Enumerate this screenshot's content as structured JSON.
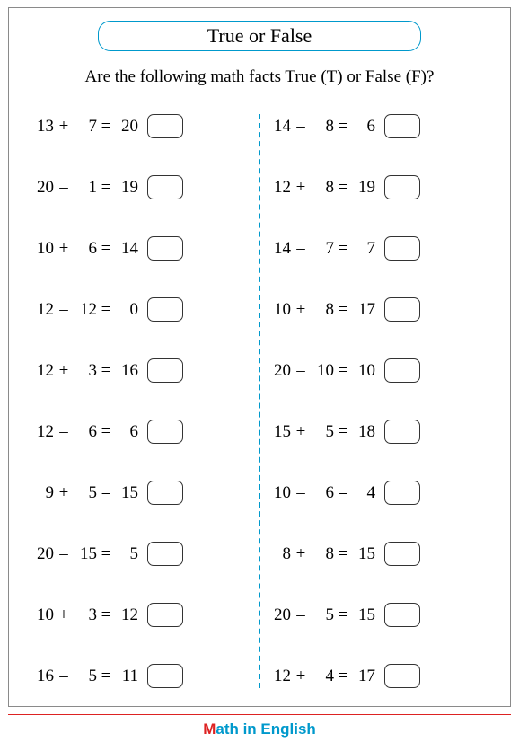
{
  "title": "True or False",
  "instructions": "Are the following math facts True (T) or False (F)?",
  "colors": {
    "accent": "#0099cc",
    "rule": "#dd2222",
    "border": "#8a8a8a"
  },
  "left": [
    {
      "a": "13",
      "op": "+",
      "b": "7",
      "r": "20"
    },
    {
      "a": "20",
      "op": "–",
      "b": "1",
      "r": "19"
    },
    {
      "a": "10",
      "op": "+",
      "b": "6",
      "r": "14"
    },
    {
      "a": "12",
      "op": "–",
      "b": "12",
      "r": "0"
    },
    {
      "a": "12",
      "op": "+",
      "b": "3",
      "r": "16"
    },
    {
      "a": "12",
      "op": "–",
      "b": "6",
      "r": "6"
    },
    {
      "a": "9",
      "op": "+",
      "b": "5",
      "r": "15"
    },
    {
      "a": "20",
      "op": "–",
      "b": "15",
      "r": "5"
    },
    {
      "a": "10",
      "op": "+",
      "b": "3",
      "r": "12"
    },
    {
      "a": "16",
      "op": "–",
      "b": "5",
      "r": "11"
    }
  ],
  "right": [
    {
      "a": "14",
      "op": "–",
      "b": "8",
      "r": "6"
    },
    {
      "a": "12",
      "op": "+",
      "b": "8",
      "r": "19"
    },
    {
      "a": "14",
      "op": "–",
      "b": "7",
      "r": "7"
    },
    {
      "a": "10",
      "op": "+",
      "b": "8",
      "r": "17"
    },
    {
      "a": "20",
      "op": "–",
      "b": "10",
      "r": "10"
    },
    {
      "a": "15",
      "op": "+",
      "b": "5",
      "r": "18"
    },
    {
      "a": "10",
      "op": "–",
      "b": "6",
      "r": "4"
    },
    {
      "a": "8",
      "op": "+",
      "b": "8",
      "r": "15"
    },
    {
      "a": "20",
      "op": "–",
      "b": "5",
      "r": "15"
    },
    {
      "a": "12",
      "op": "+",
      "b": "4",
      "r": "17"
    }
  ],
  "footer": {
    "m": "M",
    "rest": "ath in English"
  }
}
